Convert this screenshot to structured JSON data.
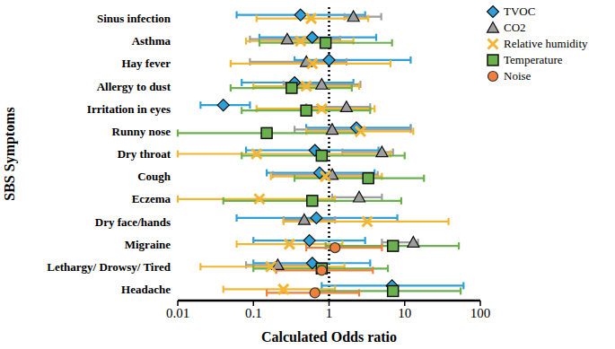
{
  "chart_data": {
    "type": "scatter",
    "x_label": "Calculated Odds ratio",
    "y_label": "SBS Symptoms",
    "categories": [
      "Sinus infection",
      "Asthma",
      "Hay fever",
      "Allergy to dust",
      "Irritation in eyes",
      "Runny nose",
      "Dry throat",
      "Cough",
      "Eczema",
      "Dry face/hands",
      "Migraine",
      "Lethargy/ Drowsy/ Tired",
      "Headache"
    ],
    "log": "x",
    "xlim": [
      0.01,
      100
    ],
    "xticks": [
      0.01,
      0.1,
      1,
      10,
      100
    ],
    "reference_x": 1,
    "grid": false,
    "legend": "upper right",
    "series": [
      {
        "name": "TVOC",
        "color": "#2e9fd9",
        "marker": "diamond",
        "values": [
          0.42,
          0.6,
          1.0,
          0.35,
          0.04,
          2.3,
          0.65,
          0.75,
          null,
          0.68,
          0.55,
          0.6,
          6.8
        ],
        "ci_low": [
          0.06,
          0.12,
          0.35,
          0.07,
          0.02,
          0.5,
          0.08,
          0.15,
          null,
          0.06,
          0.1,
          0.1,
          0.8
        ],
        "ci_high": [
          3.0,
          4.2,
          12,
          2.1,
          0.09,
          12,
          4.5,
          4.0,
          null,
          8,
          3.0,
          3.5,
          60
        ]
      },
      {
        "name": "CO2",
        "color": "#9e9e9e",
        "marker": "triangle",
        "values": [
          2.1,
          0.28,
          0.5,
          0.8,
          1.7,
          1.1,
          5,
          1.1,
          2.5,
          0.47,
          13,
          0.21,
          null
        ],
        "ci_low": [
          1.6,
          0.09,
          0.09,
          0.25,
          0.5,
          0.35,
          1.5,
          0.18,
          1.1,
          0.25,
          5,
          0.08,
          null
        ],
        "ci_high": [
          4.9,
          1.4,
          1.7,
          2.6,
          3.5,
          12,
          7,
          4.4,
          5,
          1.2,
          15,
          0.7,
          null
        ]
      },
      {
        "name": "Relative humidity",
        "color": "#f2b632",
        "marker": "x",
        "values": [
          0.58,
          0.42,
          0.6,
          0.5,
          0.8,
          2.6,
          0.11,
          0.9,
          0.12,
          3.2,
          0.3,
          0.17,
          0.25
        ],
        "ci_low": [
          0.11,
          0.08,
          0.05,
          0.1,
          0.11,
          0.5,
          0.01,
          0.17,
          0.01,
          0.25,
          0.06,
          0.02,
          0.04
        ],
        "ci_high": [
          3.3,
          2.1,
          6.5,
          2.5,
          4.0,
          13,
          6.5,
          5,
          1.2,
          38,
          1.5,
          1.6,
          1.2
        ]
      },
      {
        "name": "Temperature",
        "color": "#6ab04c",
        "marker": "square",
        "values": [
          null,
          0.9,
          null,
          0.32,
          0.5,
          0.15,
          0.8,
          3.3,
          0.6,
          null,
          7,
          0.8,
          7
        ],
        "ci_low": [
          null,
          0.12,
          null,
          0.05,
          0.07,
          0.01,
          0.07,
          0.35,
          0.04,
          null,
          0.9,
          0.1,
          0.7
        ],
        "ci_high": [
          null,
          6.8,
          null,
          2.0,
          3.5,
          2.3,
          10,
          18,
          9,
          null,
          52,
          6,
          55
        ]
      },
      {
        "name": "Noise",
        "color": "#f07f3c",
        "marker": "circle",
        "values": [
          null,
          null,
          null,
          null,
          null,
          null,
          null,
          null,
          null,
          null,
          1.2,
          0.8,
          0.65
        ],
        "ci_low": [
          null,
          null,
          null,
          null,
          null,
          null,
          null,
          null,
          null,
          null,
          0.5,
          0.2,
          0.15
        ],
        "ci_high": [
          null,
          null,
          null,
          null,
          null,
          null,
          null,
          null,
          null,
          null,
          5,
          3.8,
          2.5
        ]
      }
    ]
  }
}
